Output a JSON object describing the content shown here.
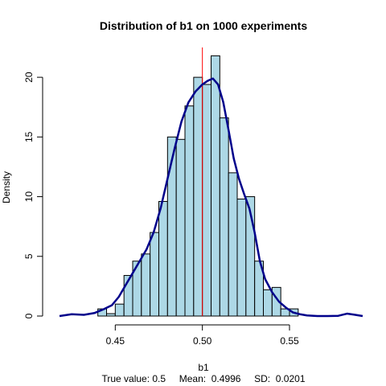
{
  "chart_data": {
    "type": "bar",
    "title": "Distribution of b1 on 1000 experiments",
    "xlabel": "b1",
    "ylabel": "Density",
    "subtitle": "True value: 0.5     Mean:  0.4996     SD:  0.0201",
    "xlim": [
      0.412,
      0.592
    ],
    "ylim": [
      0,
      22.5
    ],
    "x_ticks": [
      0.45,
      0.5,
      0.55
    ],
    "x_tick_labels": [
      "0.45",
      "0.50",
      "0.55"
    ],
    "y_ticks": [
      0,
      5,
      10,
      15,
      20
    ],
    "y_tick_labels": [
      "0",
      "5",
      "10",
      "15",
      "20"
    ],
    "bin_width": 0.005,
    "histogram": [
      {
        "x0": 0.44,
        "x1": 0.445,
        "density": 0.6
      },
      {
        "x0": 0.445,
        "x1": 0.45,
        "density": 0.2
      },
      {
        "x0": 0.45,
        "x1": 0.455,
        "density": 1.0
      },
      {
        "x0": 0.455,
        "x1": 0.46,
        "density": 3.4
      },
      {
        "x0": 0.46,
        "x1": 0.465,
        "density": 4.6
      },
      {
        "x0": 0.465,
        "x1": 0.47,
        "density": 5.2
      },
      {
        "x0": 0.47,
        "x1": 0.475,
        "density": 7.0
      },
      {
        "x0": 0.475,
        "x1": 0.48,
        "density": 9.6
      },
      {
        "x0": 0.48,
        "x1": 0.485,
        "density": 15.0
      },
      {
        "x0": 0.485,
        "x1": 0.49,
        "density": 14.8
      },
      {
        "x0": 0.49,
        "x1": 0.495,
        "density": 17.6
      },
      {
        "x0": 0.495,
        "x1": 0.5,
        "density": 20.0
      },
      {
        "x0": 0.5,
        "x1": 0.505,
        "density": 19.4
      },
      {
        "x0": 0.505,
        "x1": 0.51,
        "density": 21.8
      },
      {
        "x0": 0.51,
        "x1": 0.515,
        "density": 16.6
      },
      {
        "x0": 0.515,
        "x1": 0.52,
        "density": 12.0
      },
      {
        "x0": 0.52,
        "x1": 0.525,
        "density": 9.8
      },
      {
        "x0": 0.525,
        "x1": 0.53,
        "density": 10.0
      },
      {
        "x0": 0.53,
        "x1": 0.535,
        "density": 4.6
      },
      {
        "x0": 0.535,
        "x1": 0.54,
        "density": 2.2
      },
      {
        "x0": 0.54,
        "x1": 0.545,
        "density": 2.4
      },
      {
        "x0": 0.545,
        "x1": 0.55,
        "density": 0.6
      },
      {
        "x0": 0.55,
        "x1": 0.555,
        "density": 0.6
      }
    ],
    "density_curve": {
      "x": [
        0.418,
        0.425,
        0.432,
        0.438,
        0.443,
        0.448,
        0.452,
        0.456,
        0.46,
        0.464,
        0.468,
        0.472,
        0.476,
        0.48,
        0.484,
        0.488,
        0.492,
        0.496,
        0.5,
        0.503,
        0.506,
        0.509,
        0.512,
        0.515,
        0.518,
        0.521,
        0.524,
        0.527,
        0.53,
        0.533,
        0.536,
        0.54,
        0.544,
        0.548,
        0.552,
        0.556,
        0.56,
        0.566,
        0.572,
        0.578,
        0.583,
        0.587,
        0.592
      ],
      "y": [
        0.0,
        0.15,
        0.1,
        0.25,
        0.55,
        0.9,
        1.6,
        2.6,
        3.6,
        4.6,
        5.6,
        7.0,
        9.0,
        11.5,
        14.0,
        16.3,
        17.9,
        18.8,
        19.4,
        19.7,
        19.9,
        19.4,
        17.9,
        15.6,
        13.2,
        11.5,
        10.2,
        9.0,
        7.0,
        4.6,
        3.1,
        2.0,
        1.2,
        0.7,
        0.3,
        0.15,
        0.05,
        0.0,
        0.0,
        0.02,
        0.2,
        0.12,
        0.0
      ]
    },
    "true_value_line": 0.5,
    "grid": false,
    "legend": "none",
    "colors": {
      "bar_fill": "#add8e6",
      "bar_stroke": "#000000",
      "density_line": "#00008b",
      "true_value_line": "#ff0000"
    }
  }
}
